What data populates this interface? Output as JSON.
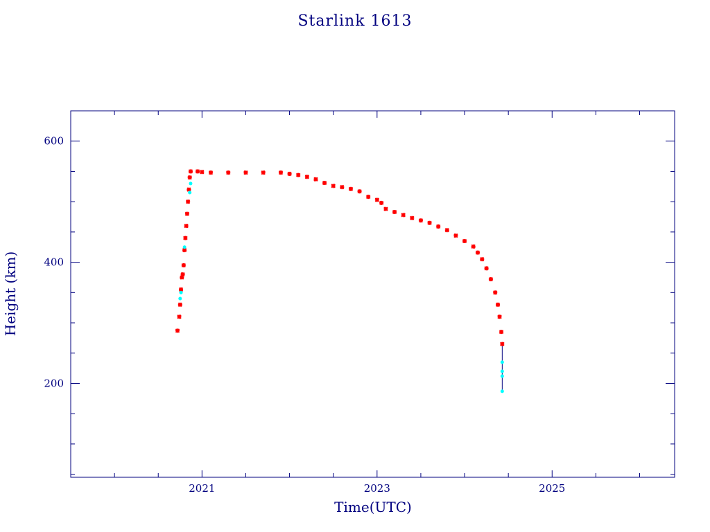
{
  "chart_data": {
    "type": "scatter",
    "title": "Starlink 1613",
    "xlabel": "Time(UTC)",
    "ylabel": "Height (km)",
    "xlim": [
      2019.5,
      2026.4
    ],
    "ylim": [
      45,
      650
    ],
    "x_ticks": [
      2021,
      2023,
      2025
    ],
    "x_tick_labels": [
      "2021",
      "2023",
      "2025"
    ],
    "y_ticks": [
      200,
      400,
      600
    ],
    "y_tick_labels": [
      "200",
      "400",
      "600"
    ],
    "grid": false,
    "colors": {
      "axis": "#00007f",
      "primary_marker": "#ff0000",
      "secondary_marker": "#00ffff",
      "line": "#00007f"
    },
    "series": [
      {
        "marker": "x",
        "color": "#ff0000",
        "values": [
          [
            2020.72,
            287
          ],
          [
            2020.74,
            310
          ],
          [
            2020.75,
            330
          ],
          [
            2020.76,
            355
          ],
          [
            2020.77,
            375
          ],
          [
            2020.78,
            380
          ],
          [
            2020.79,
            395
          ],
          [
            2020.8,
            420
          ],
          [
            2020.81,
            440
          ],
          [
            2020.82,
            460
          ],
          [
            2020.83,
            480
          ],
          [
            2020.84,
            500
          ],
          [
            2020.85,
            520
          ],
          [
            2020.86,
            540
          ],
          [
            2020.87,
            550
          ],
          [
            2020.95,
            550
          ],
          [
            2021.0,
            549
          ],
          [
            2021.1,
            548
          ],
          [
            2021.3,
            548
          ],
          [
            2021.5,
            548
          ],
          [
            2021.7,
            548
          ],
          [
            2021.9,
            548
          ],
          [
            2022.0,
            546
          ],
          [
            2022.1,
            544
          ],
          [
            2022.2,
            541
          ],
          [
            2022.3,
            537
          ],
          [
            2022.4,
            531
          ],
          [
            2022.5,
            526
          ],
          [
            2022.6,
            524
          ],
          [
            2022.7,
            521
          ],
          [
            2022.8,
            517
          ],
          [
            2022.9,
            508
          ],
          [
            2023.0,
            503
          ],
          [
            2023.05,
            498
          ],
          [
            2023.1,
            488
          ],
          [
            2023.2,
            483
          ],
          [
            2023.3,
            478
          ],
          [
            2023.4,
            473
          ],
          [
            2023.5,
            469
          ],
          [
            2023.6,
            465
          ],
          [
            2023.7,
            459
          ],
          [
            2023.8,
            453
          ],
          [
            2023.9,
            444
          ],
          [
            2024.0,
            435
          ],
          [
            2024.1,
            426
          ],
          [
            2024.15,
            416
          ],
          [
            2024.2,
            405
          ],
          [
            2024.25,
            390
          ],
          [
            2024.3,
            372
          ],
          [
            2024.35,
            350
          ],
          [
            2024.38,
            330
          ],
          [
            2024.4,
            310
          ],
          [
            2024.42,
            285
          ],
          [
            2024.43,
            265
          ]
        ]
      },
      {
        "marker": "dot",
        "color": "#00ffff",
        "values": [
          [
            2020.75,
            340
          ],
          [
            2020.76,
            350
          ],
          [
            2020.8,
            425
          ],
          [
            2020.86,
            515
          ],
          [
            2020.87,
            530
          ],
          [
            2024.43,
            235
          ],
          [
            2024.43,
            220
          ],
          [
            2024.43,
            212
          ],
          [
            2024.43,
            187
          ]
        ]
      }
    ],
    "trace": {
      "color": "#00007f",
      "values": [
        [
          2024.43,
          265
        ],
        [
          2024.43,
          235
        ],
        [
          2024.43,
          212
        ],
        [
          2024.43,
          187
        ]
      ]
    }
  }
}
